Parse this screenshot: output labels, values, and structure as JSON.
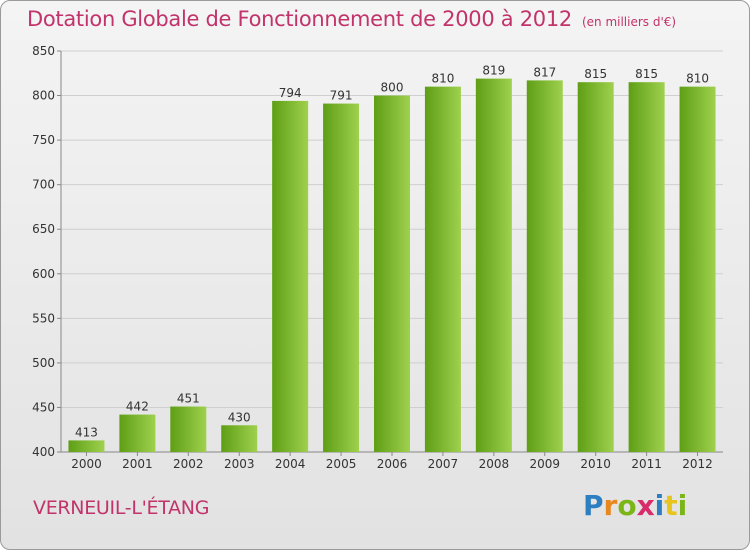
{
  "title": "Dotation Globale de Fonctionnement de 2000 à 2012",
  "unit_note": "(en milliers d'€)",
  "commune": "VERNEUIL-L'ÉTANG",
  "logo": {
    "text": "Proxiti",
    "letters": [
      {
        "ch": "P",
        "color": "#2d7fc2"
      },
      {
        "ch": "r",
        "color": "#e8871e"
      },
      {
        "ch": "o",
        "color": "#7cb518"
      },
      {
        "ch": "x",
        "color": "#d92a6a"
      },
      {
        "ch": "i",
        "color": "#2d7fc2"
      },
      {
        "ch": "t",
        "color": "#e8c41e"
      },
      {
        "ch": "i",
        "color": "#7cb518"
      }
    ]
  },
  "colors": {
    "title": "#c1336a",
    "bar_light": "#9fd14e",
    "bar_dark": "#5e9e15",
    "grid": "#cfcfcf",
    "axis_text": "#333333"
  },
  "chart_data": {
    "type": "bar",
    "categories": [
      "2000",
      "2001",
      "2002",
      "2003",
      "2004",
      "2005",
      "2006",
      "2007",
      "2008",
      "2009",
      "2010",
      "2011",
      "2012"
    ],
    "values": [
      413,
      442,
      451,
      430,
      794,
      791,
      800,
      810,
      819,
      817,
      815,
      815,
      810
    ],
    "ylim": [
      400,
      850
    ],
    "yticks": [
      400,
      450,
      500,
      550,
      600,
      650,
      700,
      750,
      800,
      850
    ],
    "grid": true,
    "legend": "none"
  }
}
